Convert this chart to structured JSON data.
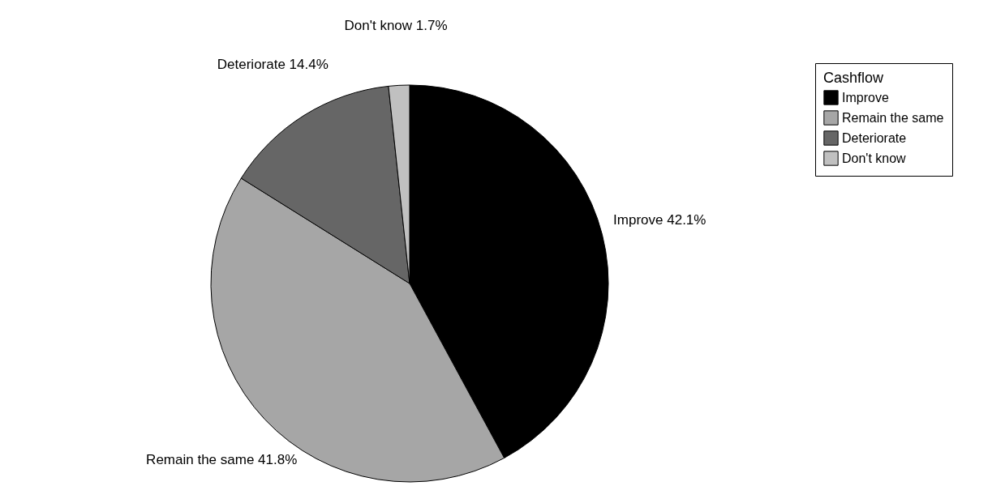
{
  "chart_data": {
    "type": "pie",
    "legend_title": "Cashflow",
    "legend": "top right",
    "categories": [
      "Improve",
      "Remain the same",
      "Deteriorate",
      "Don't know"
    ],
    "values": [
      42.1,
      41.8,
      14.4,
      1.7
    ],
    "colors": [
      "#000000",
      "#a6a6a6",
      "#666666",
      "#c0c0c0"
    ],
    "value_labels": [
      "42.1%",
      "41.8%",
      "14.4%",
      "1.7%"
    ]
  }
}
